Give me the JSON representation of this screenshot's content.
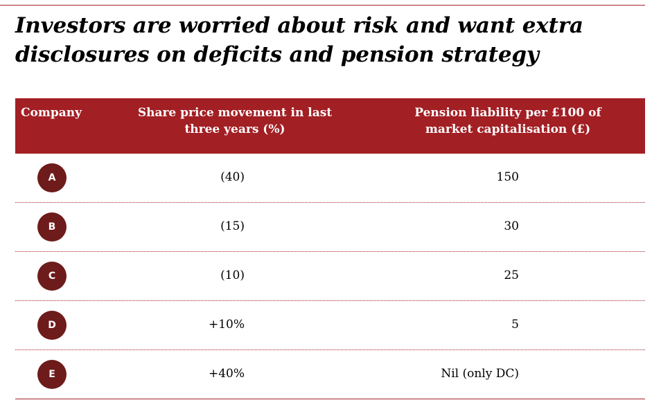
{
  "title": "Investors are worried about risk and want extra disclosures on deficits and pension strategy",
  "table": {
    "headers": {
      "company": "Company",
      "share": "Share price movement in last three years (%)",
      "pension": "Pension liability per £100 of market capitalisation (£)"
    },
    "rows": [
      {
        "company": "A",
        "share": "(40)",
        "pension": "150"
      },
      {
        "company": "B",
        "share": "(15)",
        "pension": "30"
      },
      {
        "company": "C",
        "share": "(10)",
        "pension": "25"
      },
      {
        "company": "D",
        "share": "+10%",
        "pension": "5"
      },
      {
        "company": "E",
        "share": "+40%",
        "pension": "Nil (only DC)"
      }
    ]
  },
  "colors": {
    "header_bg": "#a21f24",
    "badge_bg": "#6e1b1b",
    "rule": "#a52328"
  }
}
